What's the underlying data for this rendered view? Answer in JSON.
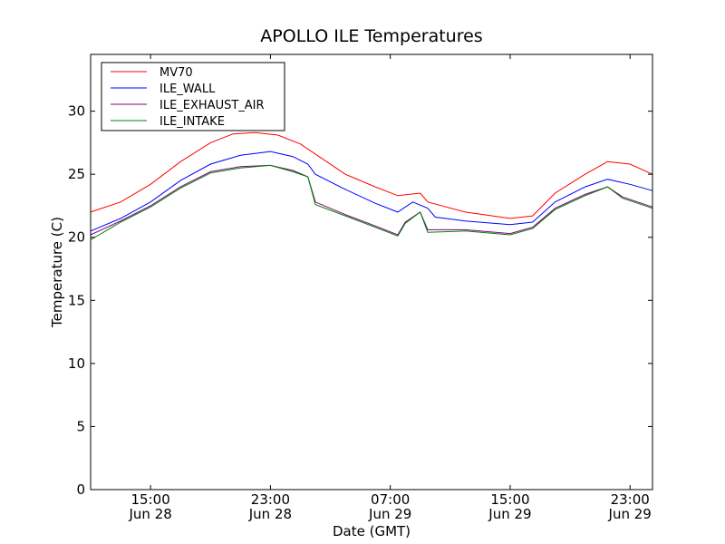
{
  "chart_data": {
    "type": "line",
    "title": "APOLLO ILE Temperatures",
    "xlabel": "Date (GMT)",
    "ylabel": "Temperature (C)",
    "xlim": [
      "2024-06-28T11:00",
      "2024-06-30T00:30"
    ],
    "ylim": [
      0,
      34.5
    ],
    "grid": false,
    "legend_position": "top-left",
    "x_ticks": [
      {
        "x": "2024-06-28T15:00",
        "time": "15:00",
        "date": "Jun 28"
      },
      {
        "x": "2024-06-28T23:00",
        "time": "23:00",
        "date": "Jun 28"
      },
      {
        "x": "2024-06-29T07:00",
        "time": "07:00",
        "date": "Jun 29"
      },
      {
        "x": "2024-06-29T15:00",
        "time": "15:00",
        "date": "Jun 29"
      },
      {
        "x": "2024-06-29T23:00",
        "time": "23:00",
        "date": "Jun 29"
      }
    ],
    "y_ticks": [
      0,
      5,
      10,
      15,
      20,
      25,
      30
    ],
    "series": [
      {
        "name": "MV70",
        "color": "#ff0000",
        "points": [
          [
            "2024-06-28T11:00",
            22.0
          ],
          [
            "2024-06-28T13:00",
            22.8
          ],
          [
            "2024-06-28T15:00",
            24.2
          ],
          [
            "2024-06-28T17:00",
            26.0
          ],
          [
            "2024-06-28T19:00",
            27.5
          ],
          [
            "2024-06-28T20:30",
            28.2
          ],
          [
            "2024-06-28T22:00",
            28.3
          ],
          [
            "2024-06-28T23:30",
            28.1
          ],
          [
            "2024-06-29T01:00",
            27.4
          ],
          [
            "2024-06-29T02:00",
            26.6
          ],
          [
            "2024-06-29T04:00",
            25.0
          ],
          [
            "2024-06-29T06:00",
            24.0
          ],
          [
            "2024-06-29T07:30",
            23.3
          ],
          [
            "2024-06-29T09:00",
            23.5
          ],
          [
            "2024-06-29T09:30",
            22.8
          ],
          [
            "2024-06-29T12:00",
            22.0
          ],
          [
            "2024-06-29T15:00",
            21.5
          ],
          [
            "2024-06-29T16:30",
            21.7
          ],
          [
            "2024-06-29T18:00",
            23.5
          ],
          [
            "2024-06-29T20:00",
            25.0
          ],
          [
            "2024-06-29T21:30",
            26.0
          ],
          [
            "2024-06-29T23:00",
            25.8
          ],
          [
            "2024-06-30T00:30",
            25.0
          ]
        ]
      },
      {
        "name": "ILE_WALL",
        "color": "#0000ff",
        "points": [
          [
            "2024-06-28T11:00",
            20.5
          ],
          [
            "2024-06-28T13:00",
            21.5
          ],
          [
            "2024-06-28T15:00",
            22.8
          ],
          [
            "2024-06-28T17:00",
            24.5
          ],
          [
            "2024-06-28T19:00",
            25.8
          ],
          [
            "2024-06-28T21:00",
            26.5
          ],
          [
            "2024-06-28T23:00",
            26.8
          ],
          [
            "2024-06-29T00:30",
            26.4
          ],
          [
            "2024-06-29T01:30",
            25.8
          ],
          [
            "2024-06-29T02:00",
            25.0
          ],
          [
            "2024-06-29T04:00",
            23.8
          ],
          [
            "2024-06-29T06:00",
            22.7
          ],
          [
            "2024-06-29T07:30",
            22.0
          ],
          [
            "2024-06-29T08:30",
            22.8
          ],
          [
            "2024-06-29T09:30",
            22.3
          ],
          [
            "2024-06-29T10:00",
            21.6
          ],
          [
            "2024-06-29T12:00",
            21.3
          ],
          [
            "2024-06-29T15:00",
            21.0
          ],
          [
            "2024-06-29T16:30",
            21.2
          ],
          [
            "2024-06-29T18:00",
            22.8
          ],
          [
            "2024-06-29T20:00",
            24.0
          ],
          [
            "2024-06-29T21:30",
            24.6
          ],
          [
            "2024-06-29T23:00",
            24.2
          ],
          [
            "2024-06-30T00:30",
            23.7
          ]
        ]
      },
      {
        "name": "ILE_EXHAUST_AIR",
        "color": "#800080",
        "points": [
          [
            "2024-06-28T11:00",
            20.2
          ],
          [
            "2024-06-28T13:00",
            21.3
          ],
          [
            "2024-06-28T15:00",
            22.5
          ],
          [
            "2024-06-28T17:00",
            24.0
          ],
          [
            "2024-06-28T19:00",
            25.2
          ],
          [
            "2024-06-28T21:00",
            25.6
          ],
          [
            "2024-06-28T23:00",
            25.7
          ],
          [
            "2024-06-29T00:30",
            25.3
          ],
          [
            "2024-06-29T01:30",
            24.8
          ],
          [
            "2024-06-29T02:00",
            22.8
          ],
          [
            "2024-06-29T04:00",
            21.8
          ],
          [
            "2024-06-29T06:00",
            20.9
          ],
          [
            "2024-06-29T07:30",
            20.2
          ],
          [
            "2024-06-29T08:00",
            21.2
          ],
          [
            "2024-06-29T09:00",
            22.0
          ],
          [
            "2024-06-29T09:30",
            20.6
          ],
          [
            "2024-06-29T12:00",
            20.6
          ],
          [
            "2024-06-29T15:00",
            20.3
          ],
          [
            "2024-06-29T16:30",
            20.8
          ],
          [
            "2024-06-29T18:00",
            22.3
          ],
          [
            "2024-06-29T20:00",
            23.4
          ],
          [
            "2024-06-29T21:30",
            24.0
          ],
          [
            "2024-06-29T22:30",
            23.2
          ],
          [
            "2024-06-30T00:30",
            22.4
          ]
        ]
      },
      {
        "name": "ILE_INTAKE",
        "color": "#008000",
        "points": [
          [
            "2024-06-28T11:00",
            19.8
          ],
          [
            "2024-06-28T13:00",
            21.2
          ],
          [
            "2024-06-28T15:00",
            22.4
          ],
          [
            "2024-06-28T17:00",
            23.9
          ],
          [
            "2024-06-28T19:00",
            25.1
          ],
          [
            "2024-06-28T21:00",
            25.5
          ],
          [
            "2024-06-28T23:00",
            25.7
          ],
          [
            "2024-06-29T00:30",
            25.2
          ],
          [
            "2024-06-29T01:30",
            24.8
          ],
          [
            "2024-06-29T02:00",
            22.6
          ],
          [
            "2024-06-29T04:00",
            21.7
          ],
          [
            "2024-06-29T06:00",
            20.8
          ],
          [
            "2024-06-29T07:30",
            20.1
          ],
          [
            "2024-06-29T08:00",
            21.1
          ],
          [
            "2024-06-29T09:00",
            22.0
          ],
          [
            "2024-06-29T09:30",
            20.4
          ],
          [
            "2024-06-29T12:00",
            20.5
          ],
          [
            "2024-06-29T15:00",
            20.2
          ],
          [
            "2024-06-29T16:30",
            20.7
          ],
          [
            "2024-06-29T18:00",
            22.2
          ],
          [
            "2024-06-29T20:00",
            23.3
          ],
          [
            "2024-06-29T21:30",
            24.0
          ],
          [
            "2024-06-29T22:30",
            23.1
          ],
          [
            "2024-06-30T00:30",
            22.3
          ]
        ]
      }
    ]
  }
}
